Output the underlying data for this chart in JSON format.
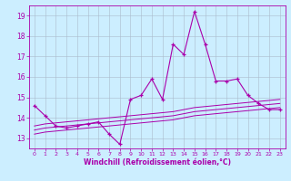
{
  "xlabel": "Windchill (Refroidissement éolien,°C)",
  "bg_color": "#cceeff",
  "line_color": "#aa00aa",
  "grid_color": "#aabbcc",
  "text_color": "#aa00aa",
  "xlim": [
    -0.5,
    23.5
  ],
  "ylim": [
    12.5,
    19.5
  ],
  "yticks": [
    13,
    14,
    15,
    16,
    17,
    18,
    19
  ],
  "xticks": [
    0,
    1,
    2,
    3,
    4,
    5,
    6,
    7,
    8,
    9,
    10,
    11,
    12,
    13,
    14,
    15,
    16,
    17,
    18,
    19,
    20,
    21,
    22,
    23
  ],
  "series": {
    "main": [
      14.6,
      14.1,
      13.6,
      13.5,
      13.6,
      13.7,
      13.8,
      13.2,
      12.7,
      14.9,
      15.1,
      15.9,
      14.9,
      17.6,
      17.1,
      19.2,
      17.6,
      15.8,
      15.8,
      15.9,
      15.1,
      14.7,
      14.4,
      14.4
    ],
    "reg1": [
      13.6,
      13.7,
      13.75,
      13.8,
      13.85,
      13.9,
      13.95,
      14.0,
      14.05,
      14.1,
      14.15,
      14.2,
      14.25,
      14.3,
      14.4,
      14.5,
      14.55,
      14.6,
      14.65,
      14.7,
      14.75,
      14.8,
      14.85,
      14.9
    ],
    "reg2": [
      13.4,
      13.5,
      13.55,
      13.6,
      13.65,
      13.7,
      13.75,
      13.8,
      13.85,
      13.9,
      13.95,
      14.0,
      14.05,
      14.1,
      14.2,
      14.3,
      14.35,
      14.4,
      14.45,
      14.5,
      14.55,
      14.6,
      14.65,
      14.7
    ],
    "reg3": [
      13.2,
      13.3,
      13.35,
      13.4,
      13.45,
      13.5,
      13.55,
      13.6,
      13.65,
      13.7,
      13.75,
      13.8,
      13.85,
      13.9,
      14.0,
      14.1,
      14.15,
      14.2,
      14.25,
      14.3,
      14.35,
      14.4,
      14.45,
      14.5
    ]
  },
  "ylabel_fontsize": 5,
  "xlabel_fontsize": 5.5,
  "ytick_fontsize": 5.5,
  "xtick_fontsize": 4.5
}
